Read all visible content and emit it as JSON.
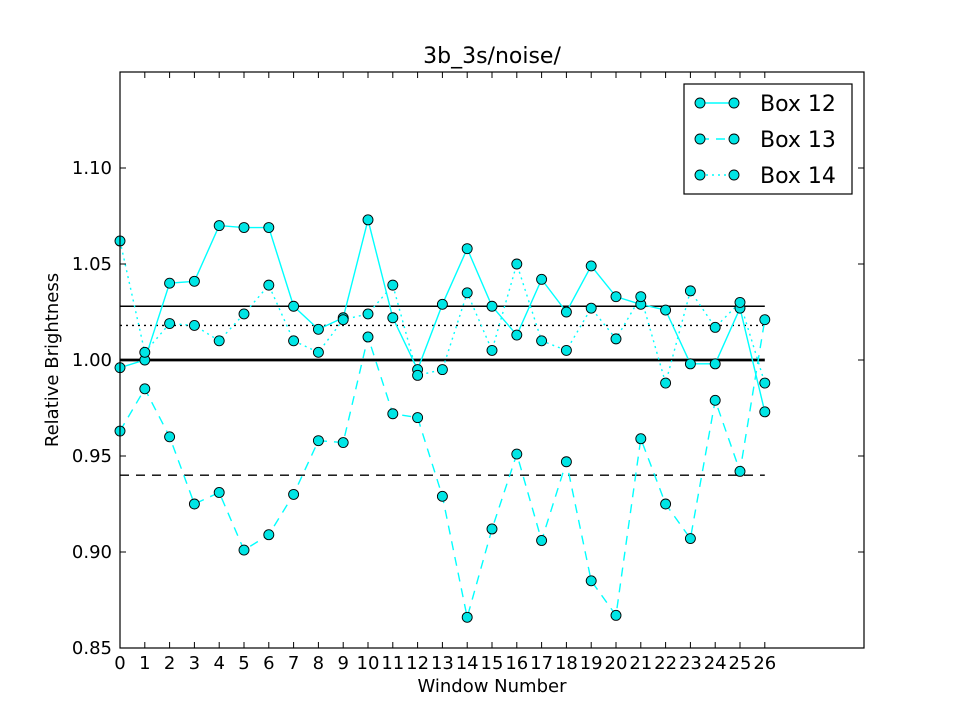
{
  "chart_data": {
    "type": "line",
    "title": "3b_3s/noise/",
    "xlabel": "Window Number",
    "ylabel": "Relative Brightness",
    "xlim": [
      0,
      30
    ],
    "ylim": [
      0.85,
      1.15
    ],
    "x_ticks": [
      0,
      1,
      2,
      3,
      4,
      5,
      6,
      7,
      8,
      9,
      10,
      11,
      12,
      13,
      14,
      15,
      16,
      17,
      18,
      19,
      20,
      21,
      22,
      23,
      24,
      25,
      26
    ],
    "y_ticks": [
      0.85,
      0.9,
      0.95,
      1.0,
      1.05,
      1.1
    ],
    "y_tick_labels": [
      "0.85",
      "0.90",
      "0.95",
      "1.00",
      "1.05",
      "1.10"
    ],
    "grid": false,
    "legend_position": "top-right",
    "x": [
      0,
      1,
      2,
      3,
      4,
      5,
      6,
      7,
      8,
      9,
      10,
      11,
      12,
      13,
      14,
      15,
      16,
      17,
      18,
      19,
      20,
      21,
      22,
      23,
      24,
      25,
      26
    ],
    "series": [
      {
        "name": "Box 12",
        "style": "solid",
        "color": "#00ffff",
        "marker_fill": "#00e5e5",
        "mean": 1.028,
        "values": [
          0.996,
          1.0,
          1.04,
          1.041,
          1.07,
          1.069,
          1.069,
          1.028,
          1.016,
          1.022,
          1.073,
          1.022,
          0.995,
          1.029,
          1.058,
          1.028,
          1.013,
          1.042,
          1.025,
          1.049,
          1.033,
          1.029,
          1.026,
          0.998,
          0.998,
          1.027,
          0.973
        ]
      },
      {
        "name": "Box 13",
        "style": "dashed",
        "color": "#00ffff",
        "marker_fill": "#00e5e5",
        "mean": 0.94,
        "values": [
          0.963,
          0.985,
          0.96,
          0.925,
          0.931,
          0.901,
          0.909,
          0.93,
          0.958,
          0.957,
          1.012,
          0.972,
          0.97,
          0.929,
          0.866,
          0.912,
          0.951,
          0.906,
          0.947,
          0.885,
          0.867,
          0.959,
          0.925,
          0.907,
          0.979,
          0.942,
          1.021
        ]
      },
      {
        "name": "Box 14",
        "style": "dotted",
        "color": "#00ffff",
        "marker_fill": "#00e5e5",
        "mean": 1.018,
        "values": [
          1.062,
          1.004,
          1.019,
          1.018,
          1.01,
          1.024,
          1.039,
          1.01,
          1.004,
          1.021,
          1.024,
          1.039,
          0.992,
          0.995,
          1.035,
          1.005,
          1.05,
          1.01,
          1.005,
          1.027,
          1.011,
          1.033,
          0.988,
          1.036,
          1.017,
          1.03,
          0.988
        ]
      }
    ],
    "reference_lines": [
      {
        "y": 1.0,
        "style": "solid-thick",
        "color": "#000000"
      },
      {
        "y": 1.028,
        "style": "solid",
        "color": "#000000"
      },
      {
        "y": 1.018,
        "style": "dotted",
        "color": "#000000"
      },
      {
        "y": 0.94,
        "style": "dashed",
        "color": "#000000"
      }
    ]
  }
}
